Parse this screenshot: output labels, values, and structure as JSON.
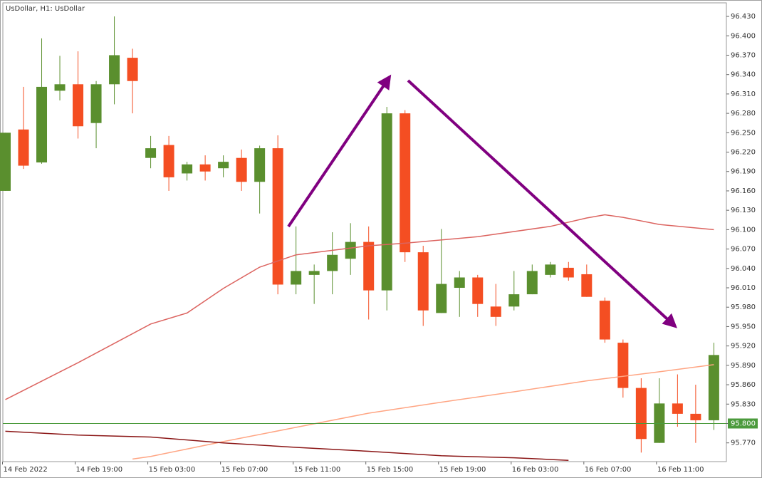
{
  "chart_data": {
    "type": "candlestick",
    "title": "UsDollar, H1:  UsDollar",
    "categories": [
      "14 Feb 2022",
      null,
      null,
      null,
      "14 Feb 19:00",
      null,
      null,
      null,
      "15 Feb 03:00",
      null,
      null,
      null,
      "15 Feb 07:00",
      null,
      null,
      null,
      "15 Feb 11:00",
      null,
      null,
      null,
      "15 Feb 15:00",
      null,
      null,
      null,
      "15 Feb 19:00",
      null,
      null,
      null,
      "16 Feb 03:00",
      null,
      null,
      null,
      "16 Feb 07:00",
      null,
      null,
      null,
      "16 Feb 11:00",
      null,
      null,
      null
    ],
    "open": [
      96.16,
      96.255,
      96.204,
      96.315,
      96.325,
      96.265,
      96.325,
      96.366,
      96.211,
      96.231,
      96.187,
      96.201,
      96.195,
      96.211,
      96.174,
      96.226,
      96.015,
      96.03,
      96.036,
      96.055,
      96.081,
      96.006,
      96.28,
      96.065,
      95.971,
      96.01,
      96.026,
      95.981,
      95.981,
      96.0,
      96.03,
      96.041,
      96.031,
      95.99,
      95.925,
      95.855,
      95.77,
      95.831,
      95.815,
      95.805
    ],
    "high": [
      96.25,
      96.321,
      96.396,
      96.369,
      96.376,
      96.33,
      96.43,
      96.38,
      96.245,
      96.245,
      96.205,
      96.215,
      96.215,
      96.224,
      96.23,
      96.246,
      96.105,
      96.046,
      96.096,
      96.11,
      96.105,
      96.29,
      96.285,
      96.075,
      96.101,
      96.036,
      96.03,
      96.016,
      96.036,
      96.046,
      96.05,
      96.05,
      96.046,
      95.995,
      95.93,
      95.87,
      95.87,
      95.876,
      95.86,
      95.925
    ],
    "low": [
      96.16,
      96.194,
      96.202,
      96.3,
      96.241,
      96.226,
      96.294,
      96.28,
      96.195,
      96.16,
      96.176,
      96.176,
      96.181,
      96.16,
      96.125,
      96.0,
      96.0,
      95.985,
      96.0,
      96.03,
      95.961,
      95.975,
      96.05,
      95.951,
      95.971,
      95.965,
      95.965,
      95.951,
      95.975,
      96.0,
      96.026,
      96.021,
      95.996,
      95.925,
      95.84,
      95.755,
      95.77,
      95.795,
      95.77,
      95.79
    ],
    "close": [
      96.25,
      96.199,
      96.321,
      96.325,
      96.26,
      96.325,
      96.37,
      96.33,
      96.226,
      96.181,
      96.201,
      96.19,
      96.205,
      96.174,
      96.226,
      96.015,
      96.036,
      96.036,
      96.061,
      96.081,
      96.006,
      96.28,
      96.065,
      95.975,
      96.016,
      96.026,
      95.985,
      95.965,
      96.0,
      96.036,
      96.046,
      96.026,
      95.996,
      95.93,
      95.855,
      95.776,
      95.831,
      95.815,
      95.805,
      95.906
    ],
    "up_color": "#5a8f2e",
    "down_color": "#f44e22",
    "series": [
      {
        "color": "#dc6460",
        "x": [
          0,
          4,
          8,
          10,
          12,
          14,
          16,
          20,
          22,
          26,
          30,
          32,
          33,
          34,
          36,
          39
        ],
        "values": [
          95.837,
          95.894,
          95.954,
          95.971,
          96.009,
          96.042,
          96.061,
          96.075,
          96.079,
          96.089,
          96.105,
          96.118,
          96.123,
          96.119,
          96.108,
          96.1
        ]
      },
      {
        "color": "#ffa583",
        "x": [
          7,
          8,
          12,
          16,
          20,
          24,
          28,
          32,
          36,
          39
        ],
        "values": [
          95.745,
          95.749,
          95.772,
          95.794,
          95.816,
          95.833,
          95.849,
          95.866,
          95.88,
          95.891
        ]
      },
      {
        "color": "#8b1616",
        "x": [
          0,
          4,
          8,
          12,
          16,
          20,
          24,
          28,
          31
        ],
        "values": [
          95.788,
          95.782,
          95.779,
          95.77,
          95.763,
          95.757,
          95.75,
          95.747,
          95.743
        ]
      }
    ],
    "current_price": {
      "value": 95.8,
      "label": "95.800"
    },
    "current_price_color": "#4b9a3c",
    "ylim": [
      95.741,
      96.451
    ],
    "yticks": [
      {
        "value": 95.77,
        "label": "95.770"
      },
      {
        "value": 95.8,
        "label": "95.800"
      },
      {
        "value": 95.83,
        "label": "95.830"
      },
      {
        "value": 95.86,
        "label": "95.860"
      },
      {
        "value": 95.89,
        "label": "95.890"
      },
      {
        "value": 95.92,
        "label": "95.920"
      },
      {
        "value": 95.95,
        "label": "95.950"
      },
      {
        "value": 95.98,
        "label": "95.980"
      },
      {
        "value": 96.01,
        "label": "96.010"
      },
      {
        "value": 96.04,
        "label": "96.040"
      },
      {
        "value": 96.07,
        "label": "96.070"
      },
      {
        "value": 96.1,
        "label": "96.100"
      },
      {
        "value": 96.13,
        "label": "96.130"
      },
      {
        "value": 96.16,
        "label": "96.160"
      },
      {
        "value": 96.19,
        "label": "96.190"
      },
      {
        "value": 96.22,
        "label": "96.220"
      },
      {
        "value": 96.25,
        "label": "96.250"
      },
      {
        "value": 96.28,
        "label": "96.280"
      },
      {
        "value": 96.31,
        "label": "96.310"
      },
      {
        "value": 96.34,
        "label": "96.340"
      },
      {
        "value": 96.37,
        "label": "96.370"
      },
      {
        "value": 96.4,
        "label": "96.400"
      },
      {
        "value": 96.43,
        "label": "96.430"
      }
    ]
  }
}
